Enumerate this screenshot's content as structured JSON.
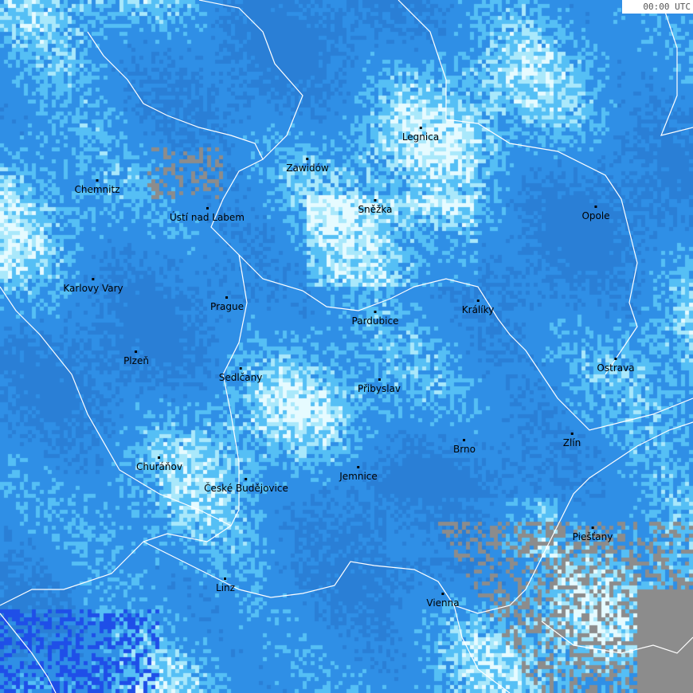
{
  "timestamp": "00:00 UTC",
  "colors": {
    "base": "#2f8fe6",
    "dark": "#2a7fd6",
    "light": "#55bff5",
    "pale": "#a9e8fb",
    "white": "#e6fbff",
    "gray": "#8c8c8c",
    "deep": "#1f4fe8",
    "border": "#ffffff"
  },
  "cities": [
    "Legnica",
    "Zawidów",
    "Chemnitz",
    "Ústí nad Labem",
    "Sněžka",
    "Opole",
    "Karlovy Vary",
    "Prague",
    "Pardubice",
    "Králíky",
    "Plzeň",
    "Ostrava",
    "Sedlčany",
    "Přibyslav",
    "Zlín",
    "Brno",
    "Churáňov",
    "Jemnice",
    "České Budějovice",
    "Piešťany",
    "Linz",
    "Vienna"
  ]
}
